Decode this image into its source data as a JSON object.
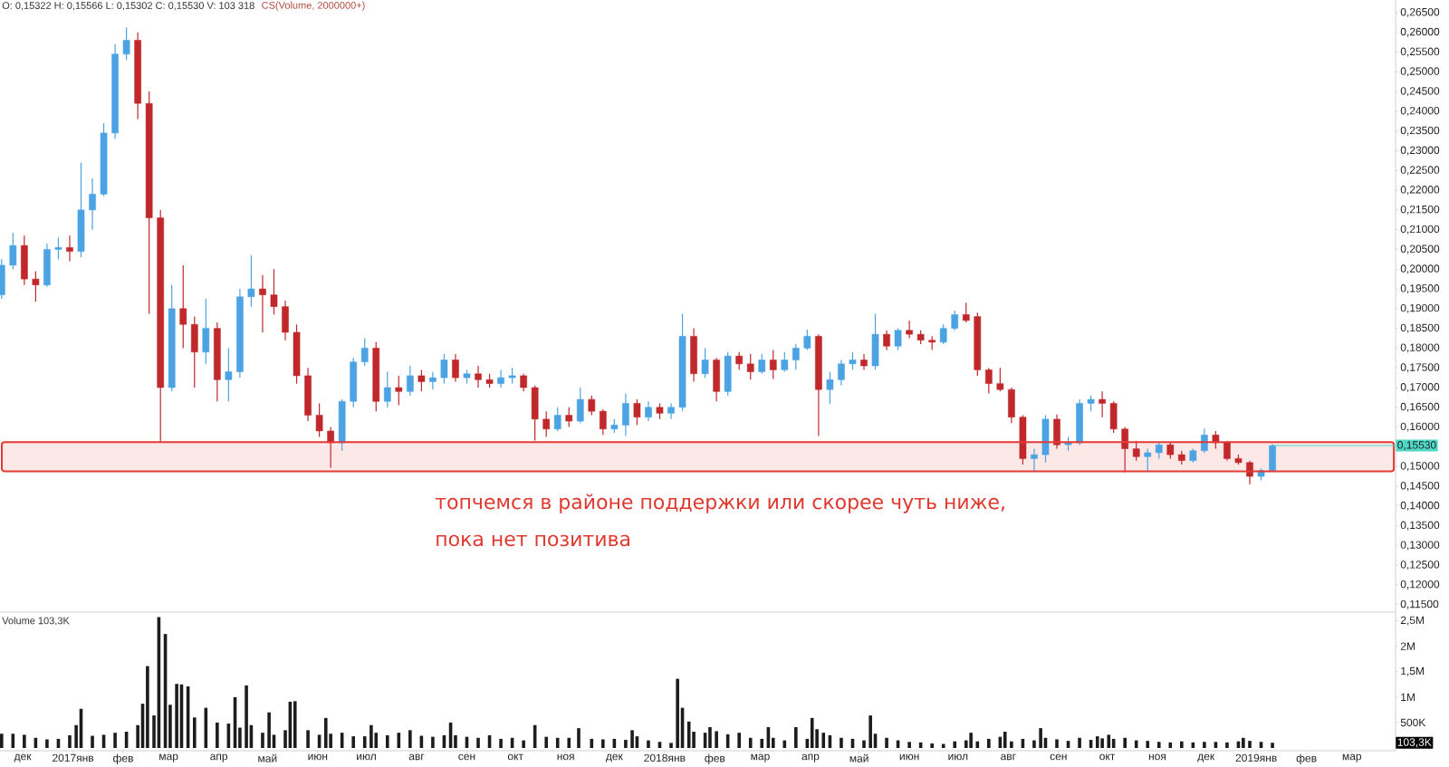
{
  "chart_data": [
    {
      "type": "candlestick",
      "title": "O: 0,15322 H: 0,15566 L: 0,15302 C: 0,15530 V: 103 318",
      "subtitle": "CS(Volume, 2000000+)",
      "x": [
        "2016-11-18",
        "2016-11-25",
        "2016-12-02",
        "2016-12-09",
        "2016-12-16",
        "2016-12-23",
        "2016-12-30",
        "2017-01-06",
        "2017-01-13",
        "2017-01-20",
        "2017-01-27",
        "2017-02-03",
        "2017-02-10",
        "2017-02-17",
        "2017-02-24",
        "2017-03-03",
        "2017-03-10",
        "2017-03-17",
        "2017-03-24",
        "2017-03-31",
        "2017-04-07",
        "2017-04-14",
        "2017-04-21",
        "2017-04-28",
        "2017-05-05",
        "2017-05-12",
        "2017-05-19",
        "2017-05-26",
        "2017-06-02",
        "2017-06-09",
        "2017-06-16",
        "2017-06-23",
        "2017-06-30",
        "2017-07-07",
        "2017-07-14",
        "2017-07-21",
        "2017-07-28",
        "2017-08-04",
        "2017-08-11",
        "2017-08-18",
        "2017-08-25",
        "2017-09-01",
        "2017-09-08",
        "2017-09-15",
        "2017-09-22",
        "2017-09-29",
        "2017-10-06",
        "2017-10-13",
        "2017-10-20",
        "2017-10-27",
        "2017-11-03",
        "2017-11-10",
        "2017-11-17",
        "2017-11-24",
        "2017-12-01",
        "2017-12-08",
        "2017-12-15",
        "2017-12-22",
        "2017-12-29",
        "2018-01-05",
        "2018-01-12",
        "2018-01-19",
        "2018-01-26",
        "2018-02-02",
        "2018-02-09",
        "2018-02-16",
        "2018-02-23",
        "2018-03-02",
        "2018-03-09",
        "2018-03-16",
        "2018-03-23",
        "2018-03-30",
        "2018-04-06",
        "2018-04-13",
        "2018-04-20",
        "2018-04-27",
        "2018-05-04",
        "2018-05-11",
        "2018-05-18",
        "2018-05-25",
        "2018-06-01",
        "2018-06-08",
        "2018-06-15",
        "2018-06-22",
        "2018-06-29",
        "2018-07-06",
        "2018-07-13",
        "2018-07-20",
        "2018-07-27",
        "2018-08-03",
        "2018-08-10",
        "2018-08-17",
        "2018-08-24",
        "2018-08-31",
        "2018-09-07",
        "2018-09-14",
        "2018-09-21",
        "2018-09-28",
        "2018-10-05",
        "2018-10-12",
        "2018-10-19",
        "2018-10-26",
        "2018-11-02",
        "2018-11-09",
        "2018-11-16",
        "2018-11-23",
        "2018-11-30",
        "2018-12-07",
        "2018-12-14",
        "2018-12-21",
        "2018-12-28",
        "2019-01-04",
        "2019-01-11"
      ],
      "ohlc": [
        [
          0.1935,
          0.2025,
          0.1925,
          0.201
        ],
        [
          0.201,
          0.2092,
          0.2,
          0.206
        ],
        [
          0.206,
          0.2085,
          0.196,
          0.1975
        ],
        [
          0.1975,
          0.1995,
          0.1918,
          0.196
        ],
        [
          0.196,
          0.2065,
          0.1955,
          0.205
        ],
        [
          0.205,
          0.208,
          0.2025,
          0.2055
        ],
        [
          0.2055,
          0.2085,
          0.202,
          0.2045
        ],
        [
          0.2045,
          0.227,
          0.203,
          0.215
        ],
        [
          0.215,
          0.223,
          0.21,
          0.219
        ],
        [
          0.219,
          0.237,
          0.2185,
          0.2345
        ],
        [
          0.2345,
          0.257,
          0.233,
          0.2545
        ],
        [
          0.2545,
          0.2612,
          0.253,
          0.258
        ],
        [
          0.258,
          0.26,
          0.238,
          0.242
        ],
        [
          0.242,
          0.245,
          0.1887,
          0.213
        ],
        [
          0.213,
          0.215,
          0.156,
          0.17
        ],
        [
          0.17,
          0.196,
          0.169,
          0.19
        ],
        [
          0.19,
          0.201,
          0.18,
          0.186
        ],
        [
          0.186,
          0.188,
          0.17,
          0.179
        ],
        [
          0.179,
          0.1925,
          0.176,
          0.185
        ],
        [
          0.185,
          0.1865,
          0.1665,
          0.172
        ],
        [
          0.172,
          0.18,
          0.1665,
          0.174
        ],
        [
          0.174,
          0.195,
          0.1725,
          0.193
        ],
        [
          0.193,
          0.2035,
          0.1905,
          0.195
        ],
        [
          0.195,
          0.1985,
          0.184,
          0.1935
        ],
        [
          0.1935,
          0.2,
          0.1885,
          0.1905
        ],
        [
          0.1905,
          0.192,
          0.182,
          0.184
        ],
        [
          0.184,
          0.186,
          0.171,
          0.173
        ],
        [
          0.173,
          0.175,
          0.1615,
          0.163
        ],
        [
          0.163,
          0.166,
          0.1575,
          0.159
        ],
        [
          0.159,
          0.16,
          0.1497,
          0.156
        ],
        [
          0.156,
          0.167,
          0.154,
          0.1665
        ],
        [
          0.1665,
          0.1775,
          0.165,
          0.1765
        ],
        [
          0.1765,
          0.1825,
          0.1755,
          0.18
        ],
        [
          0.18,
          0.1815,
          0.164,
          0.1665
        ],
        [
          0.1665,
          0.174,
          0.165,
          0.17
        ],
        [
          0.17,
          0.173,
          0.1655,
          0.169
        ],
        [
          0.169,
          0.1755,
          0.168,
          0.173
        ],
        [
          0.173,
          0.1745,
          0.169,
          0.1715
        ],
        [
          0.1715,
          0.174,
          0.1695,
          0.1725
        ],
        [
          0.1725,
          0.1785,
          0.171,
          0.177
        ],
        [
          0.177,
          0.1785,
          0.1715,
          0.1725
        ],
        [
          0.1725,
          0.1745,
          0.171,
          0.1735
        ],
        [
          0.1735,
          0.1755,
          0.17,
          0.172
        ],
        [
          0.172,
          0.1735,
          0.17,
          0.171
        ],
        [
          0.171,
          0.1745,
          0.17,
          0.1725
        ],
        [
          0.1725,
          0.175,
          0.171,
          0.173
        ],
        [
          0.173,
          0.1735,
          0.169,
          0.17
        ],
        [
          0.17,
          0.1705,
          0.1566,
          0.162
        ],
        [
          0.162,
          0.164,
          0.1575,
          0.1595
        ],
        [
          0.1595,
          0.165,
          0.159,
          0.163
        ],
        [
          0.163,
          0.165,
          0.16,
          0.1615
        ],
        [
          0.1615,
          0.17,
          0.161,
          0.167
        ],
        [
          0.167,
          0.168,
          0.163,
          0.164
        ],
        [
          0.164,
          0.1645,
          0.158,
          0.1595
        ],
        [
          0.1595,
          0.162,
          0.1585,
          0.1605
        ],
        [
          0.1605,
          0.1685,
          0.1578,
          0.166
        ],
        [
          0.166,
          0.167,
          0.1605,
          0.1625
        ],
        [
          0.1625,
          0.1665,
          0.1615,
          0.165
        ],
        [
          0.165,
          0.166,
          0.162,
          0.1635
        ],
        [
          0.1635,
          0.166,
          0.162,
          0.165
        ],
        [
          0.165,
          0.1887,
          0.164,
          0.183
        ],
        [
          0.183,
          0.185,
          0.1715,
          0.1735
        ],
        [
          0.1735,
          0.18,
          0.1725,
          0.177
        ],
        [
          0.177,
          0.1775,
          0.1665,
          0.169
        ],
        [
          0.169,
          0.179,
          0.168,
          0.178
        ],
        [
          0.178,
          0.179,
          0.1745,
          0.176
        ],
        [
          0.176,
          0.1785,
          0.172,
          0.174
        ],
        [
          0.174,
          0.1785,
          0.1735,
          0.177
        ],
        [
          0.177,
          0.1795,
          0.1722,
          0.1745
        ],
        [
          0.1745,
          0.179,
          0.174,
          0.177
        ],
        [
          0.177,
          0.181,
          0.1745,
          0.18
        ],
        [
          0.18,
          0.1847,
          0.1795,
          0.183
        ],
        [
          0.183,
          0.1835,
          0.1578,
          0.1695
        ],
        [
          0.1695,
          0.174,
          0.1659,
          0.172
        ],
        [
          0.172,
          0.177,
          0.1705,
          0.176
        ],
        [
          0.176,
          0.179,
          0.1745,
          0.177
        ],
        [
          0.177,
          0.1785,
          0.1745,
          0.1755
        ],
        [
          0.1755,
          0.1887,
          0.1745,
          0.1835
        ],
        [
          0.1835,
          0.1845,
          0.1795,
          0.1805
        ],
        [
          0.1805,
          0.185,
          0.1795,
          0.1845
        ],
        [
          0.1845,
          0.187,
          0.1825,
          0.1835
        ],
        [
          0.1835,
          0.1845,
          0.181,
          0.182
        ],
        [
          0.182,
          0.183,
          0.1795,
          0.1815
        ],
        [
          0.1815,
          0.186,
          0.181,
          0.185
        ],
        [
          0.185,
          0.1895,
          0.1845,
          0.1885
        ],
        [
          0.1885,
          0.1915,
          0.1865,
          0.187
        ],
        [
          0.188,
          0.189,
          0.173,
          0.1745
        ],
        [
          0.1745,
          0.175,
          0.1685,
          0.171
        ],
        [
          0.171,
          0.175,
          0.169,
          0.1695
        ],
        [
          0.1695,
          0.17,
          0.161,
          0.1625
        ],
        [
          0.1625,
          0.163,
          0.1505,
          0.152
        ],
        [
          0.152,
          0.1545,
          0.1487,
          0.153
        ],
        [
          0.153,
          0.163,
          0.151,
          0.162
        ],
        [
          0.162,
          0.1632,
          0.1545,
          0.1555
        ],
        [
          0.1555,
          0.1575,
          0.154,
          0.156
        ],
        [
          0.156,
          0.167,
          0.1555,
          0.166
        ],
        [
          0.166,
          0.168,
          0.164,
          0.167
        ],
        [
          0.167,
          0.169,
          0.1625,
          0.166
        ],
        [
          0.166,
          0.1665,
          0.1585,
          0.1595
        ],
        [
          0.1595,
          0.16,
          0.1485,
          0.1545
        ],
        [
          0.1545,
          0.1565,
          0.1515,
          0.1525
        ],
        [
          0.1525,
          0.1545,
          0.1488,
          0.1535
        ],
        [
          0.1535,
          0.156,
          0.152,
          0.1555
        ],
        [
          0.1555,
          0.1562,
          0.152,
          0.153
        ],
        [
          0.153,
          0.154,
          0.1505,
          0.1515
        ],
        [
          0.1515,
          0.1545,
          0.151,
          0.154
        ],
        [
          0.154,
          0.1596,
          0.1535,
          0.158
        ],
        [
          0.158,
          0.159,
          0.1545,
          0.156
        ],
        [
          0.156,
          0.1565,
          0.1515,
          0.152
        ],
        [
          0.152,
          0.153,
          0.1505,
          0.151
        ],
        [
          0.151,
          0.1515,
          0.1455,
          0.1475
        ],
        [
          0.1475,
          0.1495,
          0.1465,
          0.149
        ],
        [
          0.149,
          0.1557,
          0.1485,
          0.1553
        ]
      ],
      "colors": [
        "#4ba3e3",
        "#4ba3e3",
        "#c0282c",
        "#c0282c",
        "#4ba3e3",
        "#4ba3e3",
        "#c0282c",
        "#4ba3e3",
        "#4ba3e3",
        "#4ba3e3",
        "#4ba3e3",
        "#4ba3e3",
        "#c0282c",
        "#c0282c",
        "#c0282c",
        "#4ba3e3",
        "#c0282c",
        "#c0282c",
        "#4ba3e3",
        "#c0282c",
        "#4ba3e3",
        "#4ba3e3",
        "#4ba3e3",
        "#c0282c",
        "#c0282c",
        "#c0282c",
        "#c0282c",
        "#c0282c",
        "#c0282c",
        "#c0282c",
        "#4ba3e3",
        "#4ba3e3",
        "#4ba3e3",
        "#c0282c",
        "#4ba3e3",
        "#c0282c",
        "#4ba3e3",
        "#c0282c",
        "#4ba3e3",
        "#4ba3e3",
        "#c0282c",
        "#4ba3e3",
        "#c0282c",
        "#c0282c",
        "#4ba3e3",
        "#4ba3e3",
        "#c0282c",
        "#c0282c",
        "#c0282c",
        "#4ba3e3",
        "#c0282c",
        "#4ba3e3",
        "#c0282c",
        "#c0282c",
        "#4ba3e3",
        "#4ba3e3",
        "#c0282c",
        "#4ba3e3",
        "#c0282c",
        "#4ba3e3",
        "#4ba3e3",
        "#c0282c",
        "#4ba3e3",
        "#c0282c",
        "#4ba3e3",
        "#c0282c",
        "#c0282c",
        "#4ba3e3",
        "#c0282c",
        "#4ba3e3",
        "#4ba3e3",
        "#4ba3e3",
        "#c0282c",
        "#4ba3e3",
        "#4ba3e3",
        "#4ba3e3",
        "#c0282c",
        "#4ba3e3",
        "#c0282c",
        "#4ba3e3",
        "#c0282c",
        "#c0282c",
        "#c0282c",
        "#4ba3e3",
        "#4ba3e3",
        "#c0282c",
        "#c0282c",
        "#c0282c",
        "#c0282c",
        "#c0282c",
        "#c0282c",
        "#4ba3e3",
        "#4ba3e3",
        "#c0282c",
        "#4ba3e3",
        "#4ba3e3",
        "#4ba3e3",
        "#c0282c",
        "#c0282c",
        "#c0282c",
        "#c0282c",
        "#4ba3e3",
        "#4ba3e3",
        "#c0282c",
        "#c0282c",
        "#4ba3e3",
        "#4ba3e3",
        "#c0282c",
        "#c0282c",
        "#c0282c",
        "#c0282c",
        "#4ba3e3",
        "#4ba3e3"
      ],
      "xlim": [
        "2016-11-17",
        "2019-03-28"
      ],
      "ylim": [
        0.1131,
        0.2682
      ],
      "yticks": [
        {
          "value": 0.115,
          "label": "0,11500"
        },
        {
          "value": 0.12,
          "label": "0,12000"
        },
        {
          "value": 0.125,
          "label": "0,12500"
        },
        {
          "value": 0.13,
          "label": "0,13000"
        },
        {
          "value": 0.135,
          "label": "0,13500"
        },
        {
          "value": 0.14,
          "label": "0,14000"
        },
        {
          "value": 0.145,
          "label": "0,14500"
        },
        {
          "value": 0.15,
          "label": "0,15000"
        },
        {
          "value": 0.16,
          "label": "0,16000"
        },
        {
          "value": 0.165,
          "label": "0,16500"
        },
        {
          "value": 0.17,
          "label": "0,17000"
        },
        {
          "value": 0.175,
          "label": "0,17500"
        },
        {
          "value": 0.18,
          "label": "0,18000"
        },
        {
          "value": 0.185,
          "label": "0,18500"
        },
        {
          "value": 0.19,
          "label": "0,19000"
        },
        {
          "value": 0.195,
          "label": "0,19500"
        },
        {
          "value": 0.2,
          "label": "0,20000"
        },
        {
          "value": 0.205,
          "label": "0,20500"
        },
        {
          "value": 0.21,
          "label": "0,21000"
        },
        {
          "value": 0.215,
          "label": "0,21500"
        },
        {
          "value": 0.22,
          "label": "0,22000"
        },
        {
          "value": 0.225,
          "label": "0,22500"
        },
        {
          "value": 0.23,
          "label": "0,23000"
        },
        {
          "value": 0.235,
          "label": "0,23500"
        },
        {
          "value": 0.24,
          "label": "0,24000"
        },
        {
          "value": 0.245,
          "label": "0,24500"
        },
        {
          "value": 0.25,
          "label": "0,25000"
        },
        {
          "value": 0.255,
          "label": "0,25500"
        },
        {
          "value": 0.26,
          "label": "0,26000"
        },
        {
          "value": 0.265,
          "label": "0,26500"
        }
      ],
      "tick_labels": "y",
      "bands": [
        {
          "axis": "y",
          "from": 0.1488,
          "to": 0.1562,
          "color": "#fce8e7"
        }
      ],
      "ref_lines": [
        {
          "axis": "y",
          "value": 0.1553,
          "label": "0,15530",
          "color": "#4fd8c7"
        }
      ],
      "annotations": [
        "топчемся в районе поддержки или скорее чуть ниже,",
        "пока нет позитива"
      ]
    },
    {
      "type": "bar",
      "title": "Volume 103,3K",
      "x": [
        "2016-11-18",
        "2016-11-25",
        "2016-12-02",
        "2016-12-09",
        "2016-12-16",
        "2016-12-23",
        "2016-12-30",
        "2017-01-03",
        "2017-01-06",
        "2017-01-13",
        "2017-01-20",
        "2017-01-27",
        "2017-02-03",
        "2017-02-10",
        "2017-02-13",
        "2017-02-16",
        "2017-02-20",
        "2017-02-23",
        "2017-02-27",
        "2017-03-02",
        "2017-03-06",
        "2017-03-09",
        "2017-03-13",
        "2017-03-17",
        "2017-03-24",
        "2017-03-31",
        "2017-04-07",
        "2017-04-11",
        "2017-04-14",
        "2017-04-18",
        "2017-04-21",
        "2017-04-28",
        "2017-05-02",
        "2017-05-05",
        "2017-05-12",
        "2017-05-15",
        "2017-05-18",
        "2017-05-26",
        "2017-06-02",
        "2017-06-06",
        "2017-06-09",
        "2017-06-16",
        "2017-06-23",
        "2017-06-30",
        "2017-07-04",
        "2017-07-07",
        "2017-07-14",
        "2017-07-21",
        "2017-07-28",
        "2017-08-04",
        "2017-08-11",
        "2017-08-18",
        "2017-08-22",
        "2017-08-25",
        "2017-09-01",
        "2017-09-08",
        "2017-09-15",
        "2017-09-22",
        "2017-09-29",
        "2017-10-06",
        "2017-10-13",
        "2017-10-20",
        "2017-10-27",
        "2017-11-03",
        "2017-11-09",
        "2017-11-17",
        "2017-11-24",
        "2017-12-01",
        "2017-12-08",
        "2017-12-12",
        "2017-12-15",
        "2017-12-22",
        "2017-12-29",
        "2018-01-05",
        "2018-01-09",
        "2018-01-12",
        "2018-01-16",
        "2018-01-19",
        "2018-01-26",
        "2018-01-29",
        "2018-02-02",
        "2018-02-09",
        "2018-02-16",
        "2018-02-23",
        "2018-03-02",
        "2018-03-06",
        "2018-03-09",
        "2018-03-16",
        "2018-03-23",
        "2018-03-30",
        "2018-04-02",
        "2018-04-05",
        "2018-04-09",
        "2018-04-13",
        "2018-04-20",
        "2018-04-27",
        "2018-05-04",
        "2018-05-08",
        "2018-05-11",
        "2018-05-18",
        "2018-05-25",
        "2018-06-01",
        "2018-06-08",
        "2018-06-15",
        "2018-06-22",
        "2018-06-29",
        "2018-07-06",
        "2018-07-09",
        "2018-07-13",
        "2018-07-20",
        "2018-07-27",
        "2018-07-30",
        "2018-08-03",
        "2018-08-10",
        "2018-08-17",
        "2018-08-21",
        "2018-08-24",
        "2018-08-31",
        "2018-09-07",
        "2018-09-14",
        "2018-09-21",
        "2018-09-25",
        "2018-09-28",
        "2018-10-02",
        "2018-10-05",
        "2018-10-12",
        "2018-10-19",
        "2018-10-26",
        "2018-11-02",
        "2018-11-09",
        "2018-11-16",
        "2018-11-23",
        "2018-11-30",
        "2018-12-07",
        "2018-12-14",
        "2018-12-21",
        "2018-12-24",
        "2018-12-28",
        "2019-01-04",
        "2019-01-11"
      ],
      "values": [
        280000,
        280000,
        260000,
        200000,
        170000,
        180000,
        250000,
        450000,
        770000,
        240000,
        260000,
        300000,
        320000,
        450000,
        870000,
        1610000,
        640000,
        2570000,
        2240000,
        850000,
        1260000,
        1250000,
        1210000,
        600000,
        790000,
        500000,
        480000,
        1000000,
        400000,
        1230000,
        450000,
        300000,
        700000,
        260000,
        350000,
        910000,
        920000,
        350000,
        260000,
        590000,
        280000,
        300000,
        230000,
        230000,
        450000,
        300000,
        250000,
        300000,
        350000,
        240000,
        220000,
        250000,
        500000,
        250000,
        220000,
        200000,
        250000,
        180000,
        200000,
        150000,
        450000,
        220000,
        200000,
        200000,
        390000,
        180000,
        170000,
        180000,
        160000,
        350000,
        230000,
        150000,
        120000,
        100000,
        1360000,
        790000,
        520000,
        320000,
        300000,
        410000,
        330000,
        270000,
        300000,
        200000,
        180000,
        410000,
        200000,
        150000,
        410000,
        180000,
        590000,
        370000,
        300000,
        250000,
        200000,
        180000,
        150000,
        640000,
        280000,
        200000,
        150000,
        120000,
        110000,
        90000,
        80000,
        130000,
        150000,
        300000,
        130000,
        180000,
        220000,
        320000,
        130000,
        180000,
        150000,
        390000,
        200000,
        170000,
        140000,
        200000,
        160000,
        230000,
        190000,
        260000,
        180000,
        200000,
        150000,
        140000,
        120000,
        110000,
        130000,
        110000,
        120000,
        120000,
        110000,
        130000,
        200000,
        140000,
        120000,
        103300
      ],
      "color": "#1c1c1c",
      "xlim": [
        "2016-11-17",
        "2019-03-28"
      ],
      "xticks": [
        {
          "value": "2016-12-01",
          "label": "дек"
        },
        {
          "value": "2017-01-01",
          "label": "2017янв"
        },
        {
          "value": "2017-02-01",
          "label": "фев"
        },
        {
          "value": "2017-03-01",
          "label": "мар"
        },
        {
          "value": "2017-04-01",
          "label": "апр"
        },
        {
          "value": "2017-05-01",
          "label": "май"
        },
        {
          "value": "2017-06-01",
          "label": "июн"
        },
        {
          "value": "2017-07-01",
          "label": "июл"
        },
        {
          "value": "2017-08-01",
          "label": "авг"
        },
        {
          "value": "2017-09-01",
          "label": "сен"
        },
        {
          "value": "2017-10-01",
          "label": "окт"
        },
        {
          "value": "2017-11-01",
          "label": "ноя"
        },
        {
          "value": "2017-12-01",
          "label": "дек"
        },
        {
          "value": "2018-01-01",
          "label": "2018янв"
        },
        {
          "value": "2018-02-01",
          "label": "фев"
        },
        {
          "value": "2018-03-01",
          "label": "мар"
        },
        {
          "value": "2018-04-01",
          "label": "апр"
        },
        {
          "value": "2018-05-01",
          "label": "май"
        },
        {
          "value": "2018-06-01",
          "label": "июн"
        },
        {
          "value": "2018-07-01",
          "label": "июл"
        },
        {
          "value": "2018-08-01",
          "label": "авг"
        },
        {
          "value": "2018-09-01",
          "label": "сен"
        },
        {
          "value": "2018-10-01",
          "label": "окт"
        },
        {
          "value": "2018-11-01",
          "label": "ноя"
        },
        {
          "value": "2018-12-01",
          "label": "дек"
        },
        {
          "value": "2019-01-01",
          "label": "2019янв"
        },
        {
          "value": "2019-02-01",
          "label": "фев"
        },
        {
          "value": "2019-03-01",
          "label": "мар"
        }
      ],
      "ylim": [
        -53000,
        2670000
      ],
      "yticks": [
        {
          "value": 500000,
          "label": "500K"
        },
        {
          "value": 1000000,
          "label": "1M"
        },
        {
          "value": 1500000,
          "label": "1,5M"
        },
        {
          "value": 2000000,
          "label": "2M"
        },
        {
          "value": 2500000,
          "label": "2,5M"
        }
      ],
      "annotations": [
        {
          "text": "103,3K",
          "y": 103300
        }
      ]
    }
  ]
}
